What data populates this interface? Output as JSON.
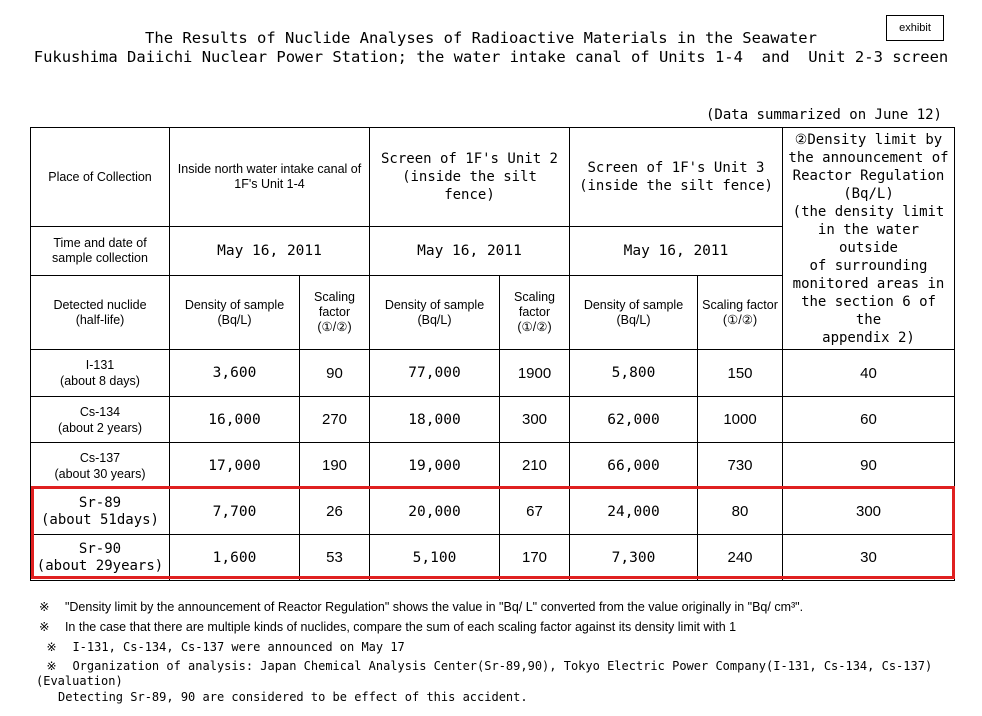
{
  "exhibit_label": "exhibit",
  "title_line1": "The Results of Nuclide Analyses of Radioactive Materials in the Seawater",
  "title_line2": "Fukushima Daiichi Nuclear Power Station; the water intake canal of Units 1-4  and  Unit 2-3 screen",
  "summary_note": "(Data summarized on June 12)",
  "table": {
    "row_place_label": "Place of Collection",
    "places": [
      [
        "Inside north water intake canal of",
        "1F's Unit 1-4"
      ],
      [
        "Screen of 1F's Unit 2",
        "(inside the silt fence)"
      ],
      [
        "Screen of 1F's Unit 3",
        "(inside the silt fence)"
      ]
    ],
    "limit_header": [
      "②Density limit by",
      "the announcement of",
      "Reactor Regulation",
      "(Bq/L)",
      "(the density limit",
      "in the water outside",
      "of surrounding",
      "monitored areas in",
      "the section 6 of the",
      "appendix 2)"
    ],
    "row_time_label": [
      "Time and date of",
      "sample collection"
    ],
    "dates": [
      "May 16, 2011",
      "May 16, 2011",
      "May 16, 2011"
    ],
    "row_nuclide_label": [
      "Detected nuclide",
      "(half-life)"
    ],
    "density_header": [
      "Density of sample",
      "(Bq/L)"
    ],
    "scaling_header": [
      "Scaling",
      "factor",
      "(①/②)"
    ],
    "scaling_header_unit3": [
      "Scaling factor",
      "(①/②)"
    ],
    "rows": [
      {
        "nuclide": "I-131",
        "half_life": "(about 8 days)",
        "v": [
          "3,600",
          "90",
          "77,000",
          "1900",
          "5,800",
          "150",
          "40"
        ]
      },
      {
        "nuclide": "Cs-134",
        "half_life": "(about 2 years)",
        "v": [
          "16,000",
          "270",
          "18,000",
          "300",
          "62,000",
          "1000",
          "60"
        ]
      },
      {
        "nuclide": "Cs-137",
        "half_life": "(about 30 years)",
        "v": [
          "17,000",
          "190",
          "19,000",
          "210",
          "66,000",
          "730",
          "90"
        ]
      },
      {
        "nuclide": "Sr-89",
        "half_life": "(about 51days)",
        "v": [
          "7,700",
          "26",
          "20,000",
          "67",
          "24,000",
          "80",
          "300"
        ]
      },
      {
        "nuclide": "Sr-90",
        "half_life": "(about 29years)",
        "v": [
          "1,600",
          "53",
          "5,100",
          "170",
          "7,300",
          "240",
          "30"
        ]
      }
    ]
  },
  "notes": [
    {
      "mark": "※",
      "text": "\"Density limit by the announcement of Reactor Regulation\" shows the value in \"Bq/ L\" converted from the value originally in \"Bq/ cm³\"."
    },
    {
      "mark": "※",
      "text": "In the case that there are multiple kinds of nuclides, compare the sum of each scaling factor against its density limit with 1"
    },
    {
      "mark": "※",
      "text": "I-131, Cs-134, Cs-137 were announced on May 17"
    },
    {
      "mark": "※",
      "text": "Organization of analysis: Japan Chemical Analysis Center(Sr-89,90), Tokyo Electric Power Company(I-131, Cs-134, Cs-137)"
    }
  ],
  "evaluation_label": "(Evaluation)",
  "evaluation_text": "Detecting Sr-89, 90 are considered to be effect of this accident.",
  "colors": {
    "highlight_border": "#e02020"
  }
}
